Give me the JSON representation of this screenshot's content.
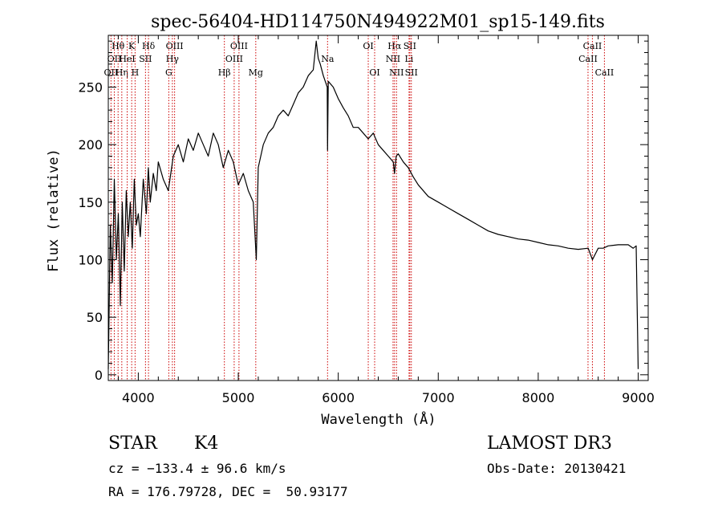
{
  "chart_data": {
    "type": "line",
    "title": "spec-56404-HD114750N494922M01_sp15-149.fits",
    "xlabel": "Wavelength (Å)",
    "ylabel": "Flux (relative)",
    "xlim": [
      3700,
      9100
    ],
    "ylim": [
      -5,
      295
    ],
    "x_ticks": [
      4000,
      5000,
      6000,
      7000,
      8000,
      9000
    ],
    "y_ticks": [
      0,
      50,
      100,
      150,
      200,
      250
    ],
    "series": [
      {
        "name": "flux",
        "x": [
          3700,
          3720,
          3740,
          3760,
          3780,
          3800,
          3820,
          3840,
          3860,
          3880,
          3900,
          3920,
          3940,
          3960,
          3980,
          4000,
          4020,
          4050,
          4080,
          4100,
          4120,
          4150,
          4180,
          4200,
          4250,
          4300,
          4350,
          4400,
          4450,
          4500,
          4550,
          4600,
          4650,
          4700,
          4750,
          4800,
          4850,
          4900,
          4950,
          5000,
          5050,
          5100,
          5150,
          5180,
          5200,
          5250,
          5300,
          5350,
          5400,
          5450,
          5500,
          5550,
          5600,
          5650,
          5700,
          5750,
          5780,
          5800,
          5820,
          5850,
          5890,
          5893,
          5900,
          5950,
          6000,
          6050,
          6100,
          6150,
          6200,
          6250,
          6300,
          6350,
          6400,
          6450,
          6500,
          6550,
          6563,
          6580,
          6600,
          6650,
          6700,
          6750,
          6800,
          6900,
          7000,
          7100,
          7200,
          7300,
          7400,
          7500,
          7600,
          7700,
          7800,
          7900,
          8000,
          8100,
          8200,
          8300,
          8400,
          8500,
          8542,
          8600,
          8650,
          8700,
          8800,
          8900,
          8950,
          8980,
          9000
        ],
        "y": [
          5,
          130,
          80,
          170,
          100,
          140,
          60,
          150,
          90,
          160,
          120,
          150,
          110,
          170,
          130,
          140,
          120,
          170,
          140,
          180,
          150,
          175,
          160,
          185,
          170,
          160,
          190,
          200,
          185,
          205,
          195,
          210,
          200,
          190,
          210,
          200,
          180,
          195,
          185,
          165,
          175,
          160,
          150,
          100,
          180,
          200,
          210,
          215,
          225,
          230,
          225,
          235,
          245,
          250,
          260,
          265,
          290,
          275,
          270,
          260,
          250,
          195,
          255,
          250,
          240,
          232,
          225,
          215,
          215,
          210,
          205,
          210,
          200,
          195,
          190,
          185,
          175,
          190,
          192,
          185,
          180,
          172,
          165,
          155,
          150,
          145,
          140,
          135,
          130,
          125,
          122,
          120,
          118,
          117,
          115,
          113,
          112,
          110,
          109,
          110,
          100,
          110,
          110,
          112,
          113,
          113,
          110,
          112,
          5
        ]
      }
    ],
    "spectral_lines": [
      {
        "label": "OII",
        "x": 3727,
        "row": 2
      },
      {
        "label": "Hθ",
        "x": 3798,
        "row": 0
      },
      {
        "label": "OII",
        "x": 3760,
        "row": 1
      },
      {
        "label": "Hη",
        "x": 3835,
        "row": 2
      },
      {
        "label": "K",
        "x": 3934,
        "row": 0
      },
      {
        "label": "HeI",
        "x": 3889,
        "row": 1
      },
      {
        "label": "H",
        "x": 3968,
        "row": 2
      },
      {
        "label": "Hδ",
        "x": 4102,
        "row": 0
      },
      {
        "label": "SII",
        "x": 4072,
        "row": 1
      },
      {
        "label": "OIII",
        "x": 4363,
        "row": 0
      },
      {
        "label": "Hγ",
        "x": 4341,
        "row": 1
      },
      {
        "label": "G",
        "x": 4305,
        "row": 2
      },
      {
        "label": "Hβ",
        "x": 4861,
        "row": 2
      },
      {
        "label": "OIII",
        "x": 5007,
        "row": 0
      },
      {
        "label": "OIII",
        "x": 4959,
        "row": 1
      },
      {
        "label": "Mg",
        "x": 5175,
        "row": 2
      },
      {
        "label": "Na",
        "x": 5893,
        "row": 1
      },
      {
        "label": "OI",
        "x": 6300,
        "row": 0
      },
      {
        "label": "OI",
        "x": 6364,
        "row": 2
      },
      {
        "label": "Hα",
        "x": 6563,
        "row": 0
      },
      {
        "label": "SII",
        "x": 6716,
        "row": 0
      },
      {
        "label": "NII",
        "x": 6548,
        "row": 1
      },
      {
        "label": "Li",
        "x": 6708,
        "row": 1
      },
      {
        "label": "NII",
        "x": 6583,
        "row": 2
      },
      {
        "label": "SII",
        "x": 6731,
        "row": 2
      },
      {
        "label": "CaII",
        "x": 8542,
        "row": 0
      },
      {
        "label": "CaII",
        "x": 8498,
        "row": 1
      },
      {
        "label": "CaII",
        "x": 8662,
        "row": 2
      }
    ],
    "line_color": "#000000",
    "marker_color": "#cc0000"
  },
  "info": {
    "object_type": "STAR",
    "subclass": "K4",
    "survey": "LAMOST DR3",
    "redshift": "cz = −133.4 ± 96.6 km/s",
    "obs_date": "Obs-Date: 20130421",
    "coords": "RA = 176.79728, DEC =  50.93177"
  }
}
